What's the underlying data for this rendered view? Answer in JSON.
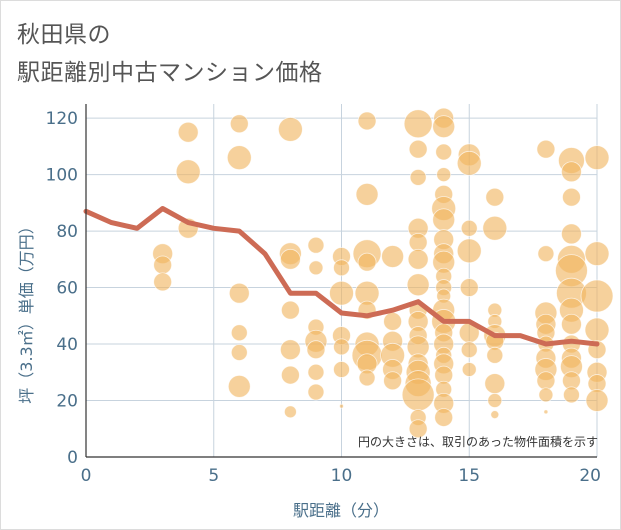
{
  "title": {
    "line1": "秋田県の",
    "line2": "駅距離別中古マンション価格"
  },
  "chart_data": {
    "type": "scatter",
    "title": "秋田県の駅距離別中古マンション価格",
    "xlabel": "駅距離（分）",
    "ylabel": "坪（3.3㎡）単価（万円）",
    "annotation": "円の大きさは、取引のあった物件面積を示す",
    "xlim": [
      0,
      20
    ],
    "ylim": [
      0,
      125
    ],
    "xticks": [
      0,
      5,
      10,
      15,
      20
    ],
    "yticks": [
      0,
      20,
      40,
      60,
      80,
      100,
      120
    ],
    "grid": true,
    "colors": {
      "bubble": "#f0b55f",
      "line": "#cd6b55",
      "grid": "#c7d3de",
      "tick": "#4a6f8a"
    },
    "series": [
      {
        "type": "line",
        "x": [
          0,
          1,
          2,
          3,
          4,
          5,
          6,
          7,
          8,
          9,
          10,
          11,
          12,
          13,
          14,
          15,
          16,
          17,
          18,
          19,
          20
        ],
        "y": [
          87,
          83,
          81,
          88,
          83,
          81,
          80,
          72,
          58,
          58,
          51,
          50,
          52,
          55,
          48,
          48,
          43,
          43,
          40,
          41,
          40
        ]
      },
      {
        "type": "bubble",
        "points": [
          [
            3,
            72,
            10
          ],
          [
            3,
            68,
            9
          ],
          [
            3,
            62,
            9
          ],
          [
            4,
            115,
            10
          ],
          [
            4,
            101,
            12
          ],
          [
            4,
            81,
            10
          ],
          [
            6,
            118,
            9
          ],
          [
            6,
            106,
            12
          ],
          [
            6,
            58,
            10
          ],
          [
            6,
            44,
            8
          ],
          [
            6,
            37,
            8
          ],
          [
            6,
            25,
            11
          ],
          [
            8,
            116,
            12
          ],
          [
            8,
            72,
            11
          ],
          [
            8,
            70,
            10
          ],
          [
            8,
            52,
            9
          ],
          [
            8,
            38,
            10
          ],
          [
            8,
            29,
            9
          ],
          [
            8,
            16,
            6
          ],
          [
            9,
            75,
            8
          ],
          [
            9,
            67,
            7
          ],
          [
            9,
            46,
            8
          ],
          [
            9,
            41,
            11
          ],
          [
            9,
            38,
            9
          ],
          [
            9,
            30,
            8
          ],
          [
            9,
            23,
            8
          ],
          [
            10,
            71,
            9
          ],
          [
            10,
            67,
            8
          ],
          [
            10,
            58,
            12
          ],
          [
            10,
            43,
            9
          ],
          [
            10,
            39,
            8
          ],
          [
            10,
            31,
            8
          ],
          [
            10,
            18,
            2
          ],
          [
            11,
            119,
            9
          ],
          [
            11,
            93,
            11
          ],
          [
            11,
            72,
            14
          ],
          [
            11,
            69,
            9
          ],
          [
            11,
            58,
            12
          ],
          [
            11,
            52,
            9
          ],
          [
            11,
            40,
            12
          ],
          [
            11,
            36,
            15
          ],
          [
            11,
            33,
            10
          ],
          [
            11,
            28,
            8
          ],
          [
            12,
            71,
            11
          ],
          [
            12,
            48,
            9
          ],
          [
            12,
            41,
            10
          ],
          [
            12,
            36,
            12
          ],
          [
            12,
            31,
            10
          ],
          [
            12,
            27,
            9
          ],
          [
            13,
            118,
            14
          ],
          [
            13,
            109,
            9
          ],
          [
            13,
            99,
            8
          ],
          [
            13,
            81,
            10
          ],
          [
            13,
            76,
            9
          ],
          [
            13,
            70,
            10
          ],
          [
            13,
            61,
            11
          ],
          [
            13,
            52,
            9
          ],
          [
            13,
            48,
            10
          ],
          [
            13,
            43,
            9
          ],
          [
            13,
            39,
            11
          ],
          [
            13,
            33,
            10
          ],
          [
            13,
            30,
            12
          ],
          [
            13,
            26,
            13
          ],
          [
            13,
            22,
            16
          ],
          [
            13,
            14,
            8
          ],
          [
            13,
            10,
            9
          ],
          [
            14,
            120,
            10
          ],
          [
            14,
            117,
            11
          ],
          [
            14,
            108,
            8
          ],
          [
            14,
            100,
            7
          ],
          [
            14,
            93,
            9
          ],
          [
            14,
            88,
            12
          ],
          [
            14,
            84,
            11
          ],
          [
            14,
            77,
            10
          ],
          [
            14,
            72,
            10
          ],
          [
            14,
            69,
            11
          ],
          [
            14,
            64,
            8
          ],
          [
            14,
            60,
            8
          ],
          [
            14,
            57,
            7
          ],
          [
            14,
            52,
            11
          ],
          [
            14,
            48,
            12
          ],
          [
            14,
            44,
            9
          ],
          [
            14,
            40,
            10
          ],
          [
            14,
            36,
            8
          ],
          [
            14,
            33,
            10
          ],
          [
            14,
            29,
            9
          ],
          [
            14,
            24,
            8
          ],
          [
            14,
            19,
            10
          ],
          [
            14,
            14,
            9
          ],
          [
            15,
            107,
            11
          ],
          [
            15,
            104,
            12
          ],
          [
            15,
            81,
            8
          ],
          [
            15,
            73,
            12
          ],
          [
            15,
            60,
            9
          ],
          [
            15,
            44,
            10
          ],
          [
            15,
            38,
            8
          ],
          [
            15,
            31,
            7
          ],
          [
            16,
            92,
            9
          ],
          [
            16,
            81,
            12
          ],
          [
            16,
            52,
            7
          ],
          [
            16,
            48,
            7
          ],
          [
            16,
            43,
            11
          ],
          [
            16,
            41,
            9
          ],
          [
            16,
            36,
            8
          ],
          [
            16,
            26,
            10
          ],
          [
            16,
            20,
            7
          ],
          [
            16,
            15,
            4
          ],
          [
            18,
            109,
            9
          ],
          [
            18,
            72,
            8
          ],
          [
            18,
            51,
            11
          ],
          [
            18,
            47,
            10
          ],
          [
            18,
            44,
            9
          ],
          [
            18,
            40,
            8
          ],
          [
            18,
            35,
            10
          ],
          [
            18,
            31,
            11
          ],
          [
            18,
            27,
            9
          ],
          [
            18,
            22,
            7
          ],
          [
            18,
            16,
            2
          ],
          [
            19,
            105,
            13
          ],
          [
            19,
            101,
            10
          ],
          [
            19,
            92,
            9
          ],
          [
            19,
            79,
            10
          ],
          [
            19,
            70,
            14
          ],
          [
            19,
            66,
            16
          ],
          [
            19,
            58,
            15
          ],
          [
            19,
            52,
            12
          ],
          [
            19,
            47,
            10
          ],
          [
            19,
            40,
            9
          ],
          [
            19,
            35,
            10
          ],
          [
            19,
            32,
            11
          ],
          [
            19,
            27,
            9
          ],
          [
            19,
            22,
            8
          ],
          [
            20,
            106,
            12
          ],
          [
            20,
            72,
            12
          ],
          [
            20,
            57,
            16
          ],
          [
            20,
            45,
            12
          ],
          [
            20,
            38,
            9
          ],
          [
            20,
            30,
            10
          ],
          [
            20,
            26,
            9
          ],
          [
            20,
            20,
            11
          ]
        ]
      }
    ]
  }
}
